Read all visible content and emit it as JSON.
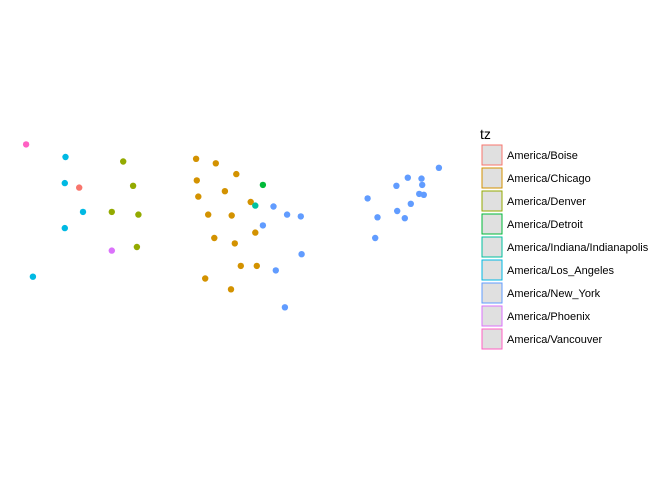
{
  "chart_data": {
    "type": "scatter",
    "title": "",
    "xlabel": "",
    "ylabel": "",
    "grid": false,
    "axes_visible": false,
    "legend": {
      "title": "tz",
      "placement": "right",
      "key_fill": "#e0e0e0"
    },
    "xlim": [
      -124,
      -68
    ],
    "ylim": [
      25,
      50
    ],
    "series": [
      {
        "name": "America/Boise",
        "color": "#f8766d",
        "points": [
          [
            -116.2,
            43.6
          ]
        ]
      },
      {
        "name": "America/Chicago",
        "color": "#d39200",
        "points": [
          [
            -100.8,
            46.8
          ],
          [
            -98.2,
            46.3
          ],
          [
            -95.5,
            45.1
          ],
          [
            -100.7,
            44.4
          ],
          [
            -97.0,
            43.2
          ],
          [
            -100.5,
            42.6
          ],
          [
            -93.6,
            42.0
          ],
          [
            -99.2,
            40.6
          ],
          [
            -96.1,
            40.5
          ],
          [
            -93.0,
            38.6
          ],
          [
            -98.4,
            38.0
          ],
          [
            -95.7,
            37.4
          ],
          [
            -92.8,
            34.9
          ],
          [
            -94.9,
            34.9
          ],
          [
            -99.6,
            33.5
          ],
          [
            -96.2,
            32.3
          ]
        ]
      },
      {
        "name": "America/Denver",
        "color": "#93aa00",
        "points": [
          [
            -110.4,
            46.5
          ],
          [
            -109.1,
            43.8
          ],
          [
            -111.9,
            40.9
          ],
          [
            -108.4,
            40.6
          ],
          [
            -108.6,
            37.0
          ]
        ]
      },
      {
        "name": "America/Detroit",
        "color": "#00ba38",
        "points": [
          [
            -92.0,
            43.9
          ]
        ]
      },
      {
        "name": "America/Indiana/Indianapolis",
        "color": "#00c19f",
        "points": [
          [
            -93.0,
            41.6
          ]
        ]
      },
      {
        "name": "America/Los_Angeles",
        "color": "#00b9e3",
        "points": [
          [
            -118.0,
            47.0
          ],
          [
            -118.1,
            44.1
          ],
          [
            -115.7,
            40.9
          ],
          [
            -118.1,
            39.1
          ],
          [
            -122.3,
            33.7
          ]
        ]
      },
      {
        "name": "America/New_York",
        "color": "#619cff",
        "points": [
          [
            -68.8,
            45.8
          ],
          [
            -72.9,
            44.7
          ],
          [
            -71.1,
            44.6
          ],
          [
            -74.4,
            43.8
          ],
          [
            -71.0,
            43.9
          ],
          [
            -71.4,
            42.9
          ],
          [
            -70.8,
            42.8
          ],
          [
            -78.2,
            42.4
          ],
          [
            -72.5,
            41.8
          ],
          [
            -90.6,
            41.5
          ],
          [
            -74.3,
            41.0
          ],
          [
            -88.8,
            40.6
          ],
          [
            -76.9,
            40.3
          ],
          [
            -87.0,
            40.4
          ],
          [
            -73.3,
            40.2
          ],
          [
            -92.0,
            39.4
          ],
          [
            -77.2,
            38.0
          ],
          [
            -86.9,
            36.2
          ],
          [
            -90.3,
            34.4
          ],
          [
            -89.1,
            30.3
          ]
        ]
      },
      {
        "name": "America/Phoenix",
        "color": "#db72fb",
        "points": [
          [
            -111.9,
            36.6
          ]
        ]
      },
      {
        "name": "America/Vancouver",
        "color": "#ff61c3",
        "points": [
          [
            -123.2,
            48.4
          ]
        ]
      }
    ]
  }
}
